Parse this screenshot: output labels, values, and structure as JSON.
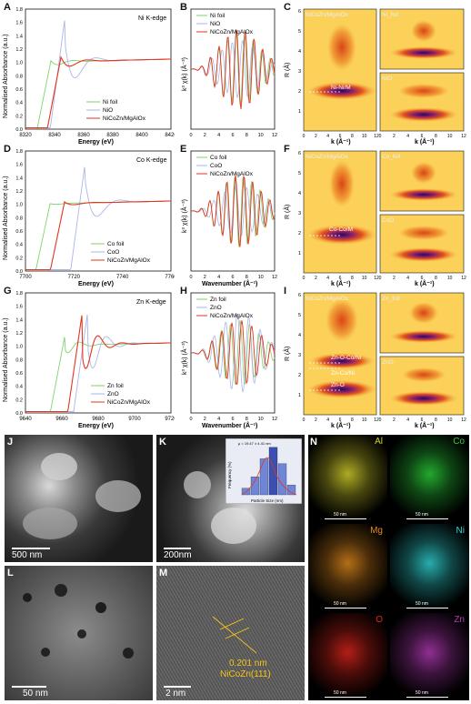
{
  "panels": {
    "A": {
      "letter": "A",
      "edge": "Ni K-edge",
      "xlabel": "Energy (eV)",
      "ylabel": "Normalised Absorbance (a.u.)",
      "xticks": [
        "8320",
        "8340",
        "8360",
        "8380",
        "8400",
        "8420"
      ],
      "yticks": [
        "0.0",
        "0.2",
        "0.4",
        "0.6",
        "0.8",
        "1.0",
        "1.2",
        "1.4",
        "1.6",
        "1.8"
      ],
      "legend": [
        "Ni foil",
        "NiO",
        "NiCoZn/MgAlOx"
      ]
    },
    "B": {
      "letter": "B",
      "ylabel": "k³ χ(k) (Å⁻³)",
      "legend": [
        "Ni foil",
        "NiO",
        "NiCoZn/MgAlOx"
      ]
    },
    "C": {
      "letter": "C",
      "main_title": "NiCoZn/MgAlOx",
      "top_title": "Ni_foil",
      "bottom_title": "NiO",
      "annotation": "Ni-Ni/M",
      "ylabel": "R (Å)",
      "xlabel": "k (Å⁻¹)",
      "yticks": [
        "1",
        "2",
        "3",
        "4",
        "5",
        "6"
      ],
      "xticks": [
        "0",
        "2",
        "4",
        "6",
        "8",
        "10",
        "12"
      ]
    },
    "D": {
      "letter": "D",
      "edge": "Co K-edge",
      "xlabel": "Energy (eV)",
      "ylabel": "Normalised Absorbance (a.u.)",
      "xticks": [
        "7700",
        "7720",
        "7740",
        "7760"
      ],
      "yticks": [
        "0.0",
        "0.2",
        "0.4",
        "0.6",
        "0.8",
        "1.0",
        "1.2",
        "1.4",
        "1.6",
        "1.8"
      ],
      "legend": [
        "Co foil",
        "CoO",
        "NiCoZn/MgAlOx"
      ]
    },
    "E": {
      "letter": "E",
      "xlabel": "Wavenumber (Å⁻¹)",
      "ylabel": "k³ χ(k) (Å⁻³)",
      "legend": [
        "Co foil",
        "CoO",
        "NiCoZn/MgAlOx"
      ]
    },
    "F": {
      "letter": "F",
      "main_title": "NiCoZn/MgAlOx",
      "top_title": "Co_foil",
      "bottom_title": "CoO",
      "annotation": "Co-Co/M",
      "ylabel": "R (Å)",
      "xlabel": "k (Å⁻¹)",
      "yticks": [
        "1",
        "2",
        "3",
        "4",
        "5",
        "6"
      ],
      "xticks": [
        "0",
        "2",
        "4",
        "6",
        "8",
        "10",
        "12"
      ]
    },
    "G": {
      "letter": "G",
      "edge": "Zn K-edge",
      "xlabel": "Energy (eV)",
      "ylabel": "Normalised Absorbance (a.u.)",
      "xticks": [
        "9640",
        "9660",
        "9680",
        "9700",
        "9720"
      ],
      "yticks": [
        "0.0",
        "0.2",
        "0.4",
        "0.6",
        "0.8",
        "1.0",
        "1.2",
        "1.4",
        "1.6",
        "1.8"
      ],
      "legend": [
        "Zn foil",
        "ZnO",
        "NiCoZn/MgAlOx"
      ]
    },
    "H": {
      "letter": "H",
      "xlabel": "Wavenumber (Å⁻¹)",
      "ylabel": "k³ χ(k) (Å⁻³)",
      "legend": [
        "Zn foil",
        "ZnO",
        "NiCoZn/MgAlOx"
      ]
    },
    "I": {
      "letter": "I",
      "main_title": "NiCoZn/MgAlOx",
      "top_title": "Zn_foil",
      "bottom_title": "ZnO",
      "annotations": [
        "Zn-O-Co/Ni",
        "Zn-Co/Ni",
        "Zn-O"
      ],
      "ylabel": "R (Å)",
      "xlabel": "k (Å⁻¹)",
      "yticks": [
        "1",
        "2",
        "3",
        "4",
        "5",
        "6"
      ],
      "xticks": [
        "0",
        "2",
        "4",
        "6",
        "8",
        "10",
        "12"
      ]
    },
    "J": {
      "letter": "J",
      "scale": "500 nm"
    },
    "K": {
      "letter": "K",
      "scale": "200nm",
      "inset_ylabel": "Frequency (%)",
      "inset_xlabel": "Particle Size (nm)",
      "inset_title": "μ = 19.47 ± 4.41 nm"
    },
    "L": {
      "letter": "L",
      "scale": "50 nm"
    },
    "M": {
      "letter": "M",
      "scale": "2 nm",
      "lattice": "0.201 nm",
      "plane": "NiCoZn(111)"
    },
    "N": {
      "letter": "N",
      "tiles": [
        {
          "el": "Al",
          "color": "#d9d62e"
        },
        {
          "el": "Co",
          "color": "#2bd23a"
        },
        {
          "el": "Mg",
          "color": "#e08a1e"
        },
        {
          "el": "Ni",
          "color": "#32d7d7"
        },
        {
          "el": "O",
          "color": "#e0261c"
        },
        {
          "el": "Zn",
          "color": "#b23bb5"
        }
      ],
      "scale": "50 nm"
    }
  },
  "colors": {
    "foil": "#7fd36a",
    "oxide": "#a9b5e8",
    "sample": "#e2341f"
  }
}
